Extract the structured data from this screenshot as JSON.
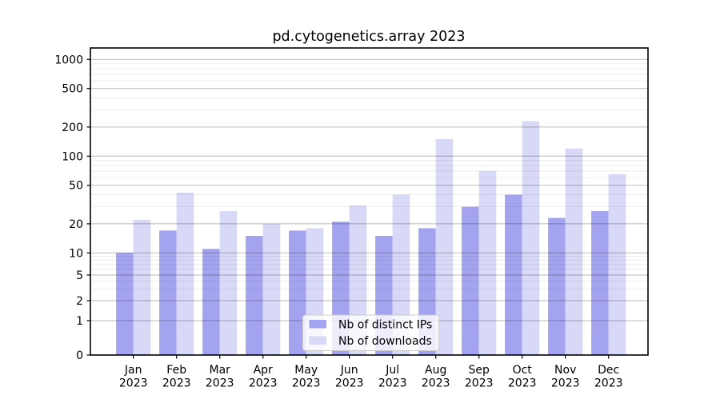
{
  "title": "pd.cytogenetics.array 2023",
  "colors": {
    "ips": "#a3a3f0",
    "downloads": "#d8d8f7"
  },
  "legend": {
    "items": [
      {
        "label": "Nb of distinct IPs"
      },
      {
        "label": "Nb of downloads"
      }
    ]
  },
  "y_axis": {
    "tick_values": [
      0,
      1,
      2,
      5,
      10,
      20,
      50,
      100,
      200,
      500,
      1000
    ],
    "minor_tick_values": [
      3,
      4,
      6,
      7,
      8,
      9,
      30,
      40,
      60,
      70,
      80,
      90,
      300,
      400,
      600,
      700,
      800,
      900
    ]
  },
  "chart_data": {
    "type": "bar",
    "title": "pd.cytogenetics.array 2023",
    "categories": [
      "Jan 2023",
      "Feb 2023",
      "Mar 2023",
      "Apr 2023",
      "May 2023",
      "Jun 2023",
      "Jul 2023",
      "Aug 2023",
      "Sep 2023",
      "Oct 2023",
      "Nov 2023",
      "Dec 2023"
    ],
    "series": [
      {
        "name": "Nb of distinct IPs",
        "values": [
          10,
          17,
          11,
          15,
          17,
          21,
          15,
          18,
          30,
          40,
          23,
          27
        ]
      },
      {
        "name": "Nb of downloads",
        "values": [
          22,
          42,
          27,
          20,
          18,
          31,
          40,
          150,
          70,
          230,
          120,
          65
        ]
      }
    ],
    "yscale": "symlog",
    "y_ticks": [
      0,
      1,
      2,
      5,
      10,
      20,
      50,
      100,
      200,
      500,
      1000
    ],
    "ylim": [
      0,
      1400
    ],
    "xlabel": "",
    "ylabel": "",
    "grid": true,
    "legend_position": "lower center"
  }
}
